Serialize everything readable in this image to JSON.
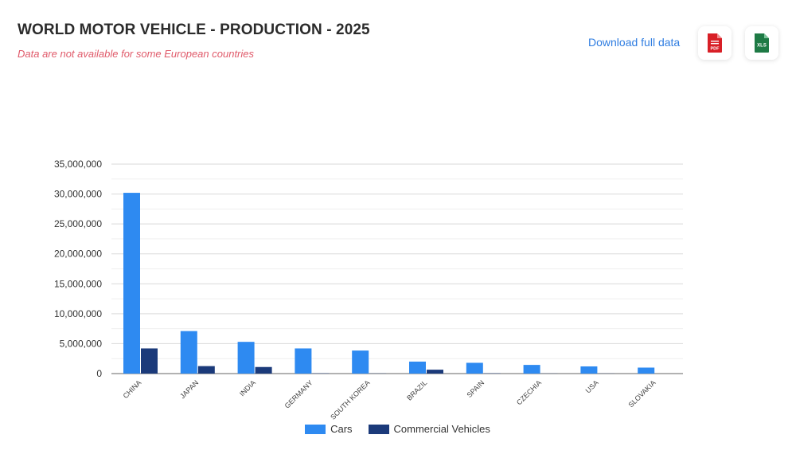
{
  "header": {
    "title": "WORLD MOTOR VEHICLE - PRODUCTION - 2025",
    "subtitle": "Data are not available for some European countries",
    "download_label": "Download full data",
    "pdf_label": "PDF",
    "xls_label": "XLS"
  },
  "colors": {
    "cars": "#2e8af1",
    "commercial": "#1b3a7a",
    "grid": "#d9d9d9",
    "pdf_icon": "#d81f26",
    "xls_icon": "#1e7a45"
  },
  "icons": {
    "pdf": "pdf-file-icon",
    "xls": "xls-file-icon"
  },
  "chart_data": {
    "type": "bar",
    "title": "",
    "xlabel": "",
    "ylabel": "",
    "ylim": [
      0,
      35000000
    ],
    "yticks": [
      0,
      5000000,
      10000000,
      15000000,
      20000000,
      25000000,
      30000000,
      35000000
    ],
    "ytick_labels": [
      "0",
      "5,000,000",
      "10,000,000",
      "15,000,000",
      "20,000,000",
      "25,000,000",
      "30,000,000",
      "35,000,000"
    ],
    "grid": true,
    "legend_position": "bottom-center",
    "categories": [
      "CHINA",
      "JAPAN",
      "INDIA",
      "GERMANY",
      "SOUTH KOREA",
      "BRAZIL",
      "SPAIN",
      "CZECHIA",
      "USA",
      "SLOVAKIA"
    ],
    "series": [
      {
        "name": "Cars",
        "values": [
          30200000,
          7100000,
          5300000,
          4200000,
          3850000,
          2000000,
          1800000,
          1450000,
          1200000,
          1000000
        ]
      },
      {
        "name": "Commercial Vehicles",
        "values": [
          4200000,
          1250000,
          1100000,
          50000,
          30000,
          650000,
          50000,
          20000,
          20000,
          0
        ]
      }
    ]
  }
}
